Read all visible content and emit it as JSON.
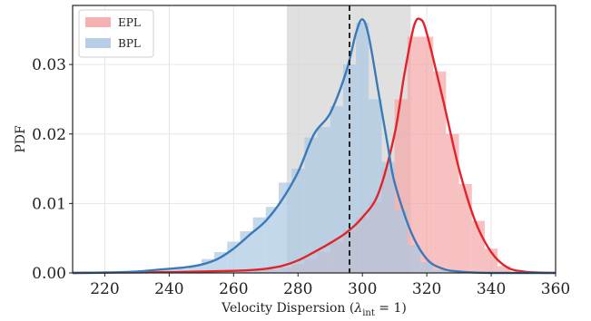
{
  "chart_data": {
    "type": "histogram-kde",
    "xlabel": "Velocity Dispersion (",
    "xlabel_symbol": "λ",
    "xlabel_sub": "int",
    "xlabel_suffix": " = 1)",
    "ylabel": "PDF",
    "xlim": [
      210,
      360
    ],
    "ylim": [
      0,
      0.0385
    ],
    "xticks": [
      220,
      240,
      260,
      280,
      300,
      320,
      340,
      360
    ],
    "xtick_labels": [
      "220",
      "240",
      "260",
      "280",
      "300",
      "320",
      "340",
      "360"
    ],
    "yticks": [
      0,
      0.01,
      0.02,
      0.03
    ],
    "ytick_labels": [
      "0.00",
      "0.01",
      "0.02",
      "0.03"
    ],
    "grid": true,
    "legend_position": "top-left",
    "shaded_band": {
      "x0": 276.5,
      "x1": 315,
      "color": "#d5d5d5"
    },
    "vline": {
      "x": 296,
      "style": "dashed",
      "color": "#111111"
    },
    "series": [
      {
        "name": "EPL",
        "line_color": "#e0242a",
        "fill_color": "#f4a5a6",
        "hist_bins": [
          [
            262,
            266,
            0.0002
          ],
          [
            266,
            270,
            0.0004
          ],
          [
            270,
            274,
            0.0005
          ],
          [
            274,
            278,
            0.0008
          ],
          [
            278,
            282,
            0.0012
          ],
          [
            282,
            286,
            0.002
          ],
          [
            286,
            290,
            0.003
          ],
          [
            290,
            294,
            0.0045
          ],
          [
            294,
            298,
            0.0062
          ],
          [
            298,
            302,
            0.008
          ],
          [
            302,
            306,
            0.0102
          ],
          [
            306,
            310,
            0.015
          ],
          [
            310,
            314,
            0.025
          ],
          [
            314,
            318,
            0.034
          ],
          [
            318,
            322,
            0.034
          ],
          [
            322,
            326,
            0.029
          ],
          [
            326,
            330,
            0.02
          ],
          [
            330,
            334,
            0.0128
          ],
          [
            334,
            338,
            0.0075
          ],
          [
            338,
            342,
            0.0035
          ],
          [
            342,
            346,
            0.001
          ]
        ],
        "kde_x": [
          210,
          220,
          230,
          240,
          250,
          260,
          265,
          270,
          275,
          280,
          285,
          290,
          295,
          300,
          305,
          310,
          313,
          316,
          318,
          320,
          325,
          330,
          335,
          340,
          345,
          350,
          355,
          360
        ],
        "kde_y": [
          0,
          5e-05,
          8e-05,
          0.0001,
          0.0002,
          0.0003,
          0.0004,
          0.0006,
          0.001,
          0.0018,
          0.003,
          0.0043,
          0.0058,
          0.008,
          0.0115,
          0.02,
          0.0285,
          0.0355,
          0.0365,
          0.0345,
          0.025,
          0.015,
          0.0075,
          0.003,
          0.0008,
          0.0002,
          5e-05,
          0
        ]
      },
      {
        "name": "BPL",
        "line_color": "#3a7ab9",
        "fill_color": "#a9c7e3",
        "hist_bins": [
          [
            230,
            234,
            0.0003
          ],
          [
            234,
            238,
            0.0005
          ],
          [
            238,
            242,
            0.0005
          ],
          [
            242,
            246,
            0.0006
          ],
          [
            246,
            250,
            0.001
          ],
          [
            250,
            254,
            0.002
          ],
          [
            254,
            258,
            0.003
          ],
          [
            258,
            262,
            0.0045
          ],
          [
            262,
            266,
            0.006
          ],
          [
            266,
            270,
            0.008
          ],
          [
            270,
            274,
            0.0095
          ],
          [
            274,
            278,
            0.013
          ],
          [
            278,
            282,
            0.015
          ],
          [
            282,
            286,
            0.0195
          ],
          [
            286,
            290,
            0.021
          ],
          [
            290,
            294,
            0.024
          ],
          [
            294,
            298,
            0.03
          ],
          [
            298,
            302,
            0.036
          ],
          [
            302,
            306,
            0.025
          ],
          [
            306,
            310,
            0.016
          ],
          [
            310,
            314,
            0.009
          ],
          [
            314,
            318,
            0.004
          ],
          [
            318,
            322,
            0.0015
          ],
          [
            322,
            326,
            0.0004
          ]
        ],
        "kde_x": [
          210,
          220,
          230,
          235,
          240,
          245,
          250,
          255,
          260,
          265,
          270,
          275,
          280,
          285,
          290,
          295,
          298,
          300,
          302,
          305,
          308,
          310,
          315,
          320,
          325,
          330,
          340,
          360
        ],
        "kde_y": [
          0,
          5e-05,
          0.0002,
          0.0004,
          0.0006,
          0.0008,
          0.0012,
          0.002,
          0.0035,
          0.0055,
          0.0075,
          0.0105,
          0.0145,
          0.02,
          0.023,
          0.029,
          0.0345,
          0.0365,
          0.034,
          0.026,
          0.018,
          0.013,
          0.006,
          0.002,
          0.0006,
          0.0002,
          0,
          0
        ]
      }
    ]
  }
}
